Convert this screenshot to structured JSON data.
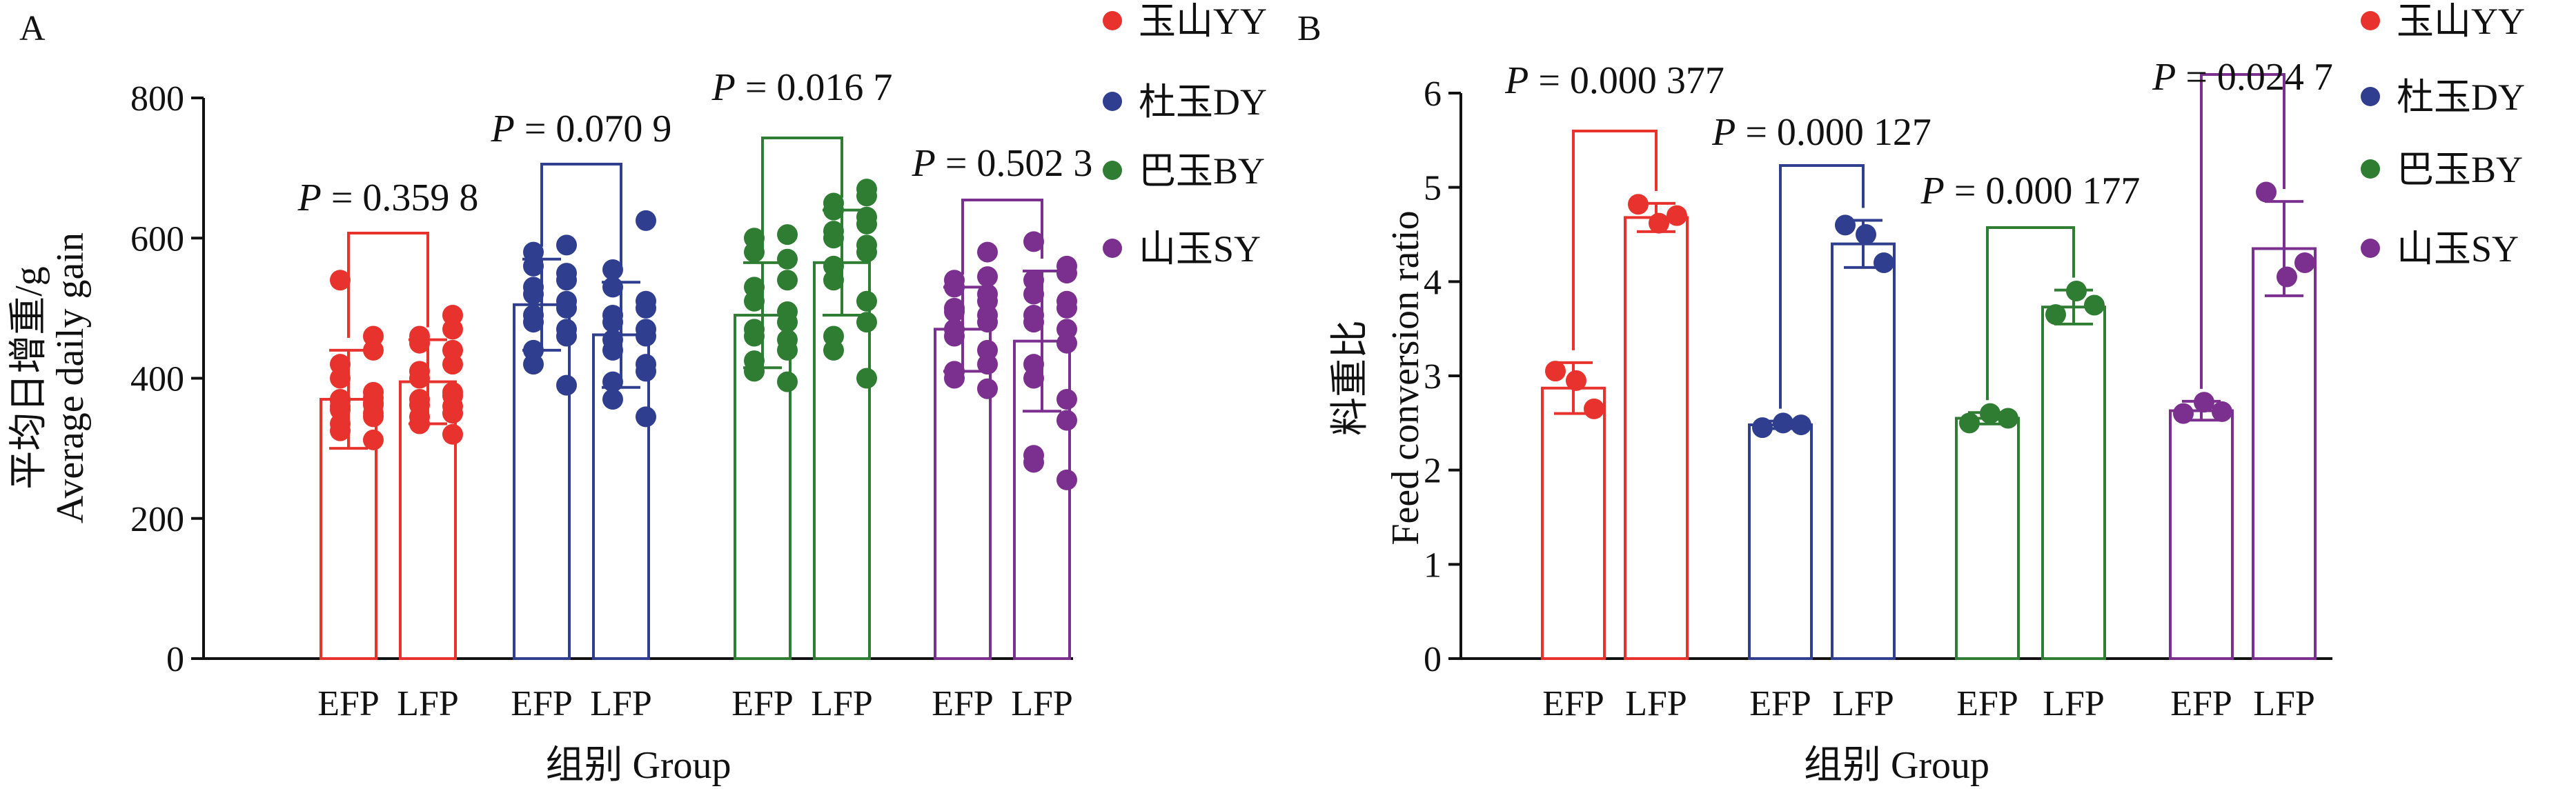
{
  "chart_data": [
    {
      "panel_label": "A",
      "type": "bar",
      "ylabel_cn": "平均日增重/g",
      "ylabel_en": "Average daily gain",
      "xlabel": "组别 Group",
      "ylim": [
        0,
        800
      ],
      "yticks": [
        "0",
        "200",
        "400",
        "600",
        "800"
      ],
      "ytick_values": [
        0,
        200,
        400,
        600,
        800
      ],
      "categories": [
        "EFP",
        "LFP",
        "EFP",
        "LFP",
        "EFP",
        "LFP",
        "EFP",
        "LFP"
      ],
      "groups": [
        {
          "name": "玉山YY",
          "color": "#e8322d",
          "p_label": "P = 0.359 8",
          "bars": [
            {
              "label": "EFP",
              "mean": 370,
              "sd": 70,
              "points": [
                312,
                325,
                335,
                345,
                350,
                355,
                360,
                362,
                365,
                368,
                370,
                372,
                380,
                400,
                420,
                440,
                460,
                540
              ]
            },
            {
              "label": "LFP",
              "mean": 395,
              "sd": 60,
              "points": [
                320,
                335,
                345,
                350,
                360,
                362,
                370,
                375,
                380,
                400,
                410,
                420,
                440,
                450,
                460,
                470,
                490
              ]
            }
          ]
        },
        {
          "name": "杜玉DY",
          "color": "#2f3e8f",
          "p_label": "P = 0.070 9",
          "bars": [
            {
              "label": "EFP",
              "mean": 505,
              "sd": 65,
              "points": [
                390,
                420,
                440,
                460,
                470,
                480,
                490,
                500,
                510,
                520,
                530,
                540,
                550,
                560,
                580,
                590
              ]
            },
            {
              "label": "LFP",
              "mean": 462,
              "sd": 75,
              "points": [
                345,
                370,
                395,
                410,
                420,
                440,
                455,
                460,
                470,
                480,
                490,
                500,
                510,
                530,
                555,
                625
              ]
            }
          ]
        },
        {
          "name": "巴玉BY",
          "color": "#2e7d32",
          "p_label": "P = 0.016 7",
          "bars": [
            {
              "label": "EFP",
              "mean": 490,
              "sd": 75,
              "points": [
                395,
                410,
                425,
                440,
                455,
                460,
                470,
                480,
                495,
                510,
                530,
                540,
                570,
                580,
                600,
                605
              ]
            },
            {
              "label": "LFP",
              "mean": 565,
              "sd": 75,
              "points": [
                400,
                440,
                460,
                480,
                510,
                540,
                560,
                580,
                590,
                600,
                610,
                620,
                630,
                640,
                650,
                660,
                670
              ]
            }
          ]
        },
        {
          "name": "山玉SY",
          "color": "#7b2f8f",
          "p_label": "P = 0.502 3",
          "bars": [
            {
              "label": "EFP",
              "mean": 470,
              "sd": 60,
              "points": [
                385,
                400,
                410,
                420,
                440,
                460,
                470,
                480,
                490,
                495,
                500,
                510,
                520,
                530,
                540,
                545,
                580
              ]
            },
            {
              "label": "LFP",
              "mean": 453,
              "sd": 100,
              "points": [
                255,
                280,
                290,
                340,
                370,
                400,
                420,
                450,
                470,
                480,
                490,
                500,
                510,
                520,
                540,
                550,
                560,
                595
              ]
            }
          ]
        }
      ]
    },
    {
      "panel_label": "B",
      "type": "bar",
      "ylabel_cn": "料重比",
      "ylabel_en": "Feed conversion ratio",
      "xlabel": "组别 Group",
      "ylim": [
        0,
        6
      ],
      "yticks": [
        "0",
        "1",
        "2",
        "3",
        "4",
        "5",
        "6"
      ],
      "ytick_values": [
        0,
        1,
        2,
        3,
        4,
        5,
        6
      ],
      "categories": [
        "EFP",
        "LFP",
        "EFP",
        "LFP",
        "EFP",
        "LFP",
        "EFP",
        "LFP"
      ],
      "groups": [
        {
          "name": "玉山YY",
          "color": "#e8322d",
          "p_label": "P = 0.000 377",
          "bars": [
            {
              "label": "EFP",
              "mean": 2.87,
              "sd": 0.27,
              "points": [
                3.05,
                2.95,
                2.65
              ]
            },
            {
              "label": "LFP",
              "mean": 4.68,
              "sd": 0.15,
              "points": [
                4.82,
                4.62,
                4.7
              ]
            }
          ]
        },
        {
          "name": "杜玉DY",
          "color": "#2f3e8f",
          "p_label": "P = 0.000 127",
          "bars": [
            {
              "label": "EFP",
              "mean": 2.48,
              "sd": 0.04,
              "points": [
                2.45,
                2.5,
                2.48
              ]
            },
            {
              "label": "LFP",
              "mean": 4.4,
              "sd": 0.25,
              "points": [
                4.6,
                4.5,
                4.2
              ]
            }
          ]
        },
        {
          "name": "巴玉BY",
          "color": "#2e7d32",
          "p_label": "P = 0.000 177",
          "bars": [
            {
              "label": "EFP",
              "mean": 2.55,
              "sd": 0.06,
              "points": [
                2.5,
                2.6,
                2.55
              ]
            },
            {
              "label": "LFP",
              "mean": 3.73,
              "sd": 0.18,
              "points": [
                3.65,
                3.9,
                3.75
              ]
            }
          ]
        },
        {
          "name": "山玉SY",
          "color": "#7b2f8f",
          "p_label": "P = 0.024 7",
          "bars": [
            {
              "label": "EFP",
              "mean": 2.63,
              "sd": 0.1,
              "points": [
                2.6,
                2.72,
                2.62
              ]
            },
            {
              "label": "LFP",
              "mean": 4.35,
              "sd": 0.5,
              "points": [
                4.95,
                4.05,
                4.2
              ]
            }
          ]
        }
      ]
    }
  ]
}
